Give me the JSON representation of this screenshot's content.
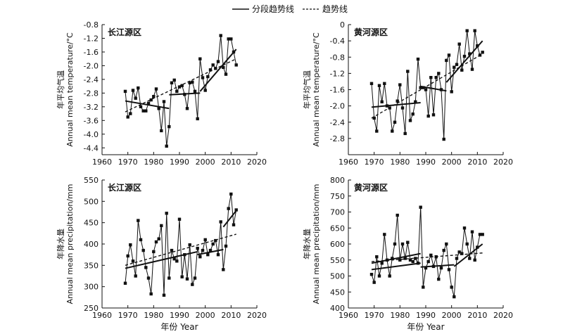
{
  "legend": {
    "segment_label": "分段趋势线",
    "trend_label": "趋势线"
  },
  "x_axis_title": "年份 Year",
  "chart_data": [
    {
      "type": "line",
      "title": "长江源区",
      "ylabel_cn": "年平均气温",
      "ylabel": "Annual mean temperature/°C",
      "xlim": [
        1960,
        2020
      ],
      "ylim": [
        -4.6,
        -0.8
      ],
      "xticks": [
        1960,
        1970,
        1980,
        1990,
        2000,
        2010,
        2020
      ],
      "yticks": [
        -4.4,
        -4.0,
        -3.6,
        -3.2,
        -2.8,
        -2.4,
        -2.0,
        -1.6,
        -1.2,
        -0.8
      ],
      "ytick_labels": [
        "-4.4",
        "-4.0",
        "-3.6",
        "-3.2",
        "-2.8",
        "-2.4",
        "-2.0",
        "-1.6",
        "-1.2",
        "-0.8"
      ],
      "x": [
        1969,
        1970,
        1971,
        1972,
        1973,
        1974,
        1975,
        1976,
        1977,
        1978,
        1979,
        1980,
        1981,
        1982,
        1983,
        1984,
        1985,
        1986,
        1987,
        1988,
        1989,
        1990,
        1991,
        1992,
        1993,
        1994,
        1995,
        1996,
        1997,
        1998,
        1999,
        2000,
        2001,
        2002,
        2003,
        2004,
        2005,
        2006,
        2007,
        2008,
        2009,
        2010,
        2011,
        2012
      ],
      "values": [
        -2.75,
        -3.5,
        -3.4,
        -2.72,
        -2.95,
        -2.65,
        -3.2,
        -3.32,
        -3.32,
        -3.1,
        -3.0,
        -2.9,
        -2.68,
        -3.25,
        -3.9,
        -3.05,
        -4.35,
        -3.78,
        -2.5,
        -2.42,
        -2.75,
        -2.62,
        -2.58,
        -2.84,
        -3.25,
        -2.5,
        -2.48,
        -2.75,
        -3.55,
        -1.8,
        -2.35,
        -2.72,
        -2.32,
        -2.12,
        -1.98,
        -2.08,
        -1.88,
        -1.12,
        -2.05,
        -2.25,
        -1.22,
        -1.22,
        -1.6,
        -1.98
      ],
      "segment_lines": [
        {
          "x": [
            1969,
            1986
          ],
          "y": [
            -3.03,
            -3.25
          ]
        },
        {
          "x": [
            1986,
            1998
          ],
          "y": [
            -2.85,
            -2.8
          ]
        },
        {
          "x": [
            1998,
            2012
          ],
          "y": [
            -2.75,
            -1.52
          ]
        }
      ],
      "trend_line": {
        "x": [
          1969,
          2012
        ],
        "y": [
          -3.35,
          -1.8
        ]
      }
    },
    {
      "type": "line",
      "title": "黄河源区",
      "ylabel_cn": "年平均气温",
      "ylabel": "Annual mean temperature/°C",
      "xlim": [
        1960,
        2020
      ],
      "ylim": [
        -3.2,
        0
      ],
      "xticks": [
        1960,
        1970,
        1980,
        1990,
        2000,
        2010,
        2020
      ],
      "yticks": [
        -2.8,
        -2.4,
        -2.0,
        -1.6,
        -1.2,
        -0.8,
        -0.4,
        0
      ],
      "ytick_labels": [
        "-2.8",
        "-2.4",
        "-2.0",
        "-1.6",
        "-1.2",
        "-0.8",
        "-0.4",
        "0"
      ],
      "x": [
        1969,
        1970,
        1971,
        1972,
        1973,
        1974,
        1975,
        1976,
        1977,
        1978,
        1979,
        1980,
        1981,
        1982,
        1983,
        1984,
        1985,
        1986,
        1987,
        1988,
        1989,
        1990,
        1991,
        1992,
        1993,
        1994,
        1995,
        1996,
        1997,
        1998,
        1999,
        2000,
        2001,
        2002,
        2003,
        2004,
        2005,
        2006,
        2007,
        2008,
        2009,
        2010,
        2011,
        2012
      ],
      "values": [
        -1.45,
        -2.3,
        -2.62,
        -1.5,
        -1.9,
        -1.45,
        -2.0,
        -2.05,
        -2.62,
        -2.4,
        -1.88,
        -1.48,
        -2.05,
        -2.68,
        -1.15,
        -2.36,
        -2.2,
        -1.9,
        -0.85,
        -1.55,
        -1.55,
        -1.6,
        -2.25,
        -1.3,
        -2.22,
        -1.3,
        -1.2,
        -1.6,
        -2.82,
        -0.88,
        -0.75,
        -1.65,
        -1.05,
        -0.98,
        -0.48,
        -1.12,
        -0.78,
        -0.15,
        -0.72,
        -1.1,
        -0.15,
        -0.52,
        -0.75,
        -0.68
      ],
      "segment_lines": [
        {
          "x": [
            1969,
            1988
          ],
          "y": [
            -2.03,
            -1.92
          ]
        },
        {
          "x": [
            1988,
            1998
          ],
          "y": [
            -1.52,
            -1.63
          ]
        },
        {
          "x": [
            1998,
            2012
          ],
          "y": [
            -1.42,
            -0.4
          ]
        }
      ],
      "trend_line": {
        "x": [
          1969,
          2012
        ],
        "y": [
          -2.3,
          -0.72
        ]
      }
    },
    {
      "type": "line",
      "title": "长江源区",
      "ylabel_cn": "年降水量",
      "ylabel": "Annual mean precipitation/mm",
      "xlim": [
        1960,
        2020
      ],
      "ylim": [
        250,
        550
      ],
      "xticks": [
        1960,
        1970,
        1980,
        1990,
        2000,
        2010,
        2020
      ],
      "yticks": [
        250,
        300,
        350,
        400,
        450,
        500,
        550
      ],
      "ytick_labels": [
        "250",
        "300",
        "350",
        "400",
        "450",
        "500",
        "550"
      ],
      "x": [
        1969,
        1970,
        1971,
        1972,
        1973,
        1974,
        1975,
        1976,
        1977,
        1978,
        1979,
        1980,
        1981,
        1982,
        1983,
        1984,
        1985,
        1986,
        1987,
        1988,
        1989,
        1990,
        1991,
        1992,
        1993,
        1994,
        1995,
        1996,
        1997,
        1998,
        1999,
        2000,
        2001,
        2002,
        2003,
        2004,
        2005,
        2006,
        2007,
        2008,
        2009,
        2010,
        2011,
        2012
      ],
      "values": [
        308,
        372,
        398,
        360,
        325,
        455,
        410,
        385,
        345,
        320,
        283,
        382,
        405,
        412,
        443,
        280,
        472,
        320,
        385,
        365,
        360,
        458,
        323,
        375,
        318,
        398,
        305,
        320,
        390,
        370,
        385,
        410,
        375,
        385,
        400,
        408,
        375,
        452,
        340,
        395,
        483,
        517,
        445,
        480
      ],
      "segment_lines": [
        {
          "x": [
            1969,
            1997
          ],
          "y": [
            343,
            382
          ]
        },
        {
          "x": [
            1997,
            2007
          ],
          "y": [
            375,
            387
          ]
        },
        {
          "x": [
            2007,
            2012
          ],
          "y": [
            440,
            478
          ]
        }
      ],
      "trend_line": {
        "x": [
          1969,
          2012
        ],
        "y": [
          350,
          423
        ]
      }
    },
    {
      "type": "line",
      "title": "黄河源区",
      "ylabel_cn": "年降水量",
      "ylabel": "Annual mean precipitation/mm",
      "xlim": [
        1960,
        2020
      ],
      "ylim": [
        400,
        800
      ],
      "xticks": [
        1960,
        1970,
        1980,
        1990,
        2000,
        2010,
        2020
      ],
      "yticks": [
        400,
        450,
        500,
        550,
        600,
        650,
        700,
        750,
        800
      ],
      "ytick_labels": [
        "400",
        "450",
        "500",
        "550",
        "600",
        "650",
        "700",
        "750",
        "800"
      ],
      "x": [
        1969,
        1970,
        1971,
        1972,
        1973,
        1974,
        1975,
        1976,
        1977,
        1978,
        1979,
        1980,
        1981,
        1982,
        1983,
        1984,
        1985,
        1986,
        1987,
        1988,
        1989,
        1990,
        1991,
        1992,
        1993,
        1994,
        1995,
        1996,
        1997,
        1998,
        1999,
        2000,
        2001,
        2002,
        2003,
        2004,
        2005,
        2006,
        2007,
        2008,
        2009,
        2010,
        2011,
        2012
      ],
      "values": [
        505,
        480,
        560,
        500,
        540,
        630,
        550,
        500,
        555,
        600,
        690,
        550,
        600,
        555,
        605,
        550,
        545,
        555,
        540,
        715,
        465,
        525,
        545,
        565,
        530,
        560,
        490,
        525,
        580,
        600,
        520,
        465,
        435,
        555,
        575,
        570,
        650,
        600,
        555,
        638,
        550,
        590,
        630,
        630
      ],
      "segment_lines": [
        {
          "x": [
            1969,
            1988
          ],
          "y": [
            520,
            540
          ]
        },
        {
          "x": [
            1969,
            1988
          ],
          "y": [
            540,
            570
          ]
        },
        {
          "x": [
            1988,
            2001
          ],
          "y": [
            528,
            535
          ]
        },
        {
          "x": [
            2001,
            2012
          ],
          "y": [
            530,
            600
          ]
        }
      ],
      "trend_line": {
        "x": [
          1969,
          2012
        ],
        "y": [
          545,
          572
        ]
      }
    }
  ]
}
